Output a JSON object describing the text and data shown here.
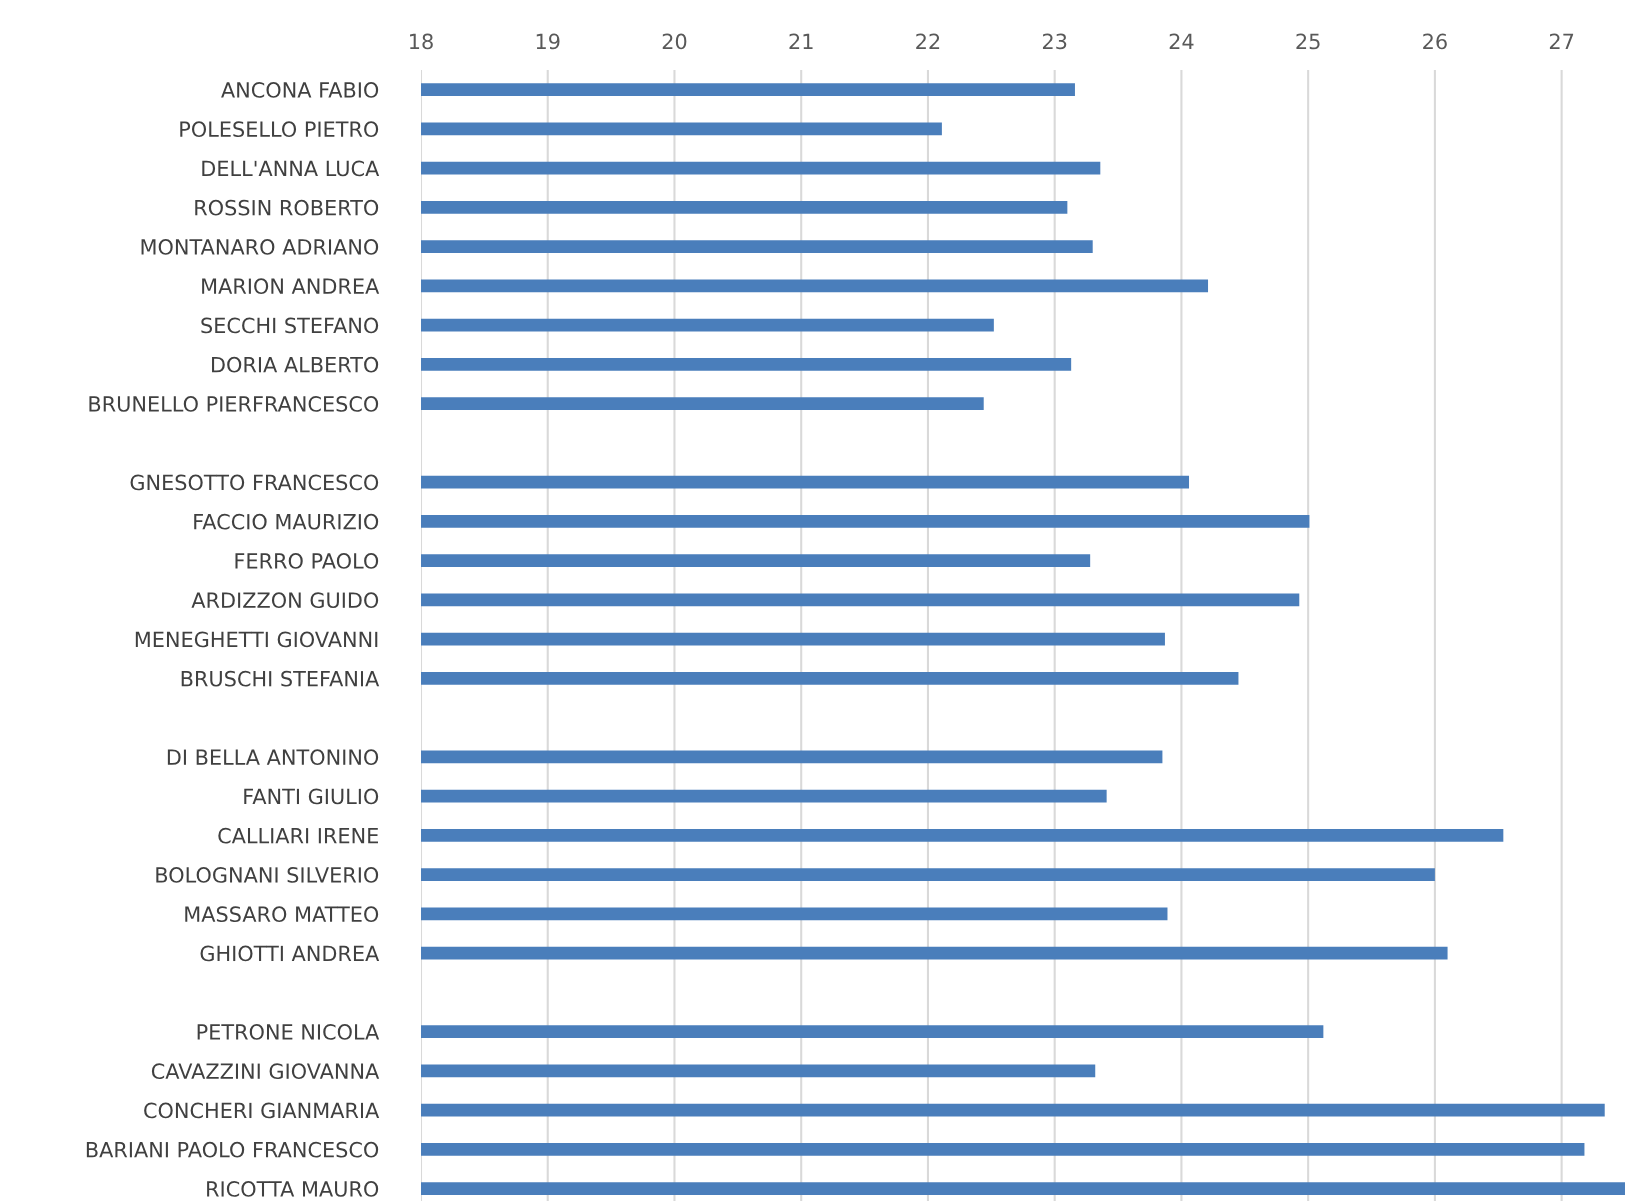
{
  "chart_data": {
    "type": "bar",
    "orientation": "horizontal",
    "categories": [
      "ANCONA FABIO",
      "POLESELLO PIETRO",
      "DELL'ANNA LUCA",
      "ROSSIN ROBERTO",
      "MONTANARO ADRIANO",
      "MARION ANDREA",
      "SECCHI STEFANO",
      "DORIA ALBERTO",
      "BRUNELLO PIERFRANCESCO",
      null,
      "GNESOTTO FRANCESCO",
      "FACCIO MAURIZIO",
      "FERRO PAOLO",
      "ARDIZZON GUIDO",
      "MENEGHETTI GIOVANNI",
      "BRUSCHI STEFANIA",
      null,
      "DI BELLA ANTONINO",
      "FANTI GIULIO",
      "CALLIARI IRENE",
      "BOLOGNANI SILVERIO",
      "MASSARO MATTEO",
      "GHIOTTI ANDREA",
      null,
      "PETRONE NICOLA",
      "CAVAZZINI GIOVANNA",
      "CONCHERI GIANMARIA",
      "BARIANI PAOLO FRANCESCO",
      "RICOTTA MAURO"
    ],
    "values": [
      23.16,
      22.11,
      23.36,
      23.1,
      23.3,
      24.21,
      22.52,
      23.13,
      22.44,
      null,
      24.06,
      25.01,
      23.28,
      24.93,
      23.87,
      24.45,
      null,
      23.85,
      23.41,
      26.54,
      26.0,
      23.89,
      26.1,
      null,
      25.12,
      23.32,
      27.34,
      27.18,
      27.5
    ],
    "color": "#4a7ebb",
    "xlim": [
      18,
      27.5
    ],
    "xticks": [
      18,
      19,
      20,
      21,
      22,
      23,
      24,
      25,
      26,
      27
    ],
    "grid": "x",
    "legend": false
  }
}
